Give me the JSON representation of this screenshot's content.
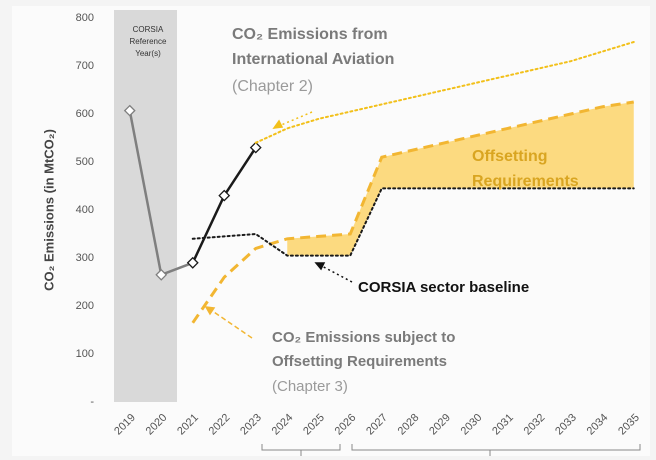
{
  "chart_data": {
    "type": "line",
    "y_label": "CO₂ Emissions (in MtCO₂)",
    "x": [
      2019,
      2020,
      2021,
      2022,
      2023,
      2024,
      2025,
      2026,
      2027,
      2028,
      2029,
      2030,
      2031,
      2032,
      2033,
      2034,
      2035
    ],
    "xlim": [
      2018.5,
      2035.5
    ],
    "xticks": [
      2019,
      2020,
      2021,
      2022,
      2023,
      2024,
      2025,
      2026,
      2027,
      2028,
      2029,
      2030,
      2031,
      2032,
      2033,
      2034,
      2035
    ],
    "ylim": [
      0,
      800
    ],
    "yticks": [
      {
        "value": 0,
        "label": "-"
      },
      100,
      200,
      300,
      400,
      500,
      600,
      700,
      800
    ],
    "shaded_range": [
      2018.5,
      2020.5
    ],
    "shaded_color": "#d9d9d9",
    "reference_label": [
      "CORSIA",
      "Reference",
      "Year(s)"
    ],
    "series": [
      {
        "color": "#7f7f7f",
        "style": "solid",
        "marker": "diamond",
        "values": [
          607,
          265,
          290,
          null,
          null,
          null,
          null,
          null,
          null,
          null,
          null,
          null,
          null,
          null,
          null,
          null,
          null
        ]
      },
      {
        "color": "#1a1a1a",
        "style": "solid",
        "marker": "diamond",
        "values": [
          null,
          null,
          290,
          430,
          530,
          null,
          null,
          null,
          null,
          null,
          null,
          null,
          null,
          null,
          null,
          null,
          null
        ]
      },
      {
        "color": "#f2c01a",
        "style": "dotted",
        "values": [
          null,
          null,
          null,
          null,
          540,
          570,
          590,
          605,
          620,
          635,
          650,
          665,
          680,
          695,
          710,
          730,
          750
        ]
      },
      {
        "color": "#f2b632",
        "style": "dashed",
        "values": [
          null,
          null,
          165,
          260,
          320,
          340,
          345,
          350,
          510,
          525,
          540,
          555,
          570,
          585,
          600,
          615,
          625
        ]
      },
      {
        "color": "#1a1a1a",
        "style": "dotted",
        "values": [
          null,
          null,
          340,
          345,
          350,
          305,
          305,
          305,
          445,
          445,
          445,
          445,
          445,
          445,
          445,
          445,
          445
        ]
      }
    ],
    "fill_color": "#fbd46a",
    "annotations": {
      "aviation": [
        "CO₂ Emissions from",
        "International Aviation",
        "(Chapter 2)"
      ],
      "offsetting": [
        "Offsetting",
        "Requirements"
      ],
      "baseline": "CORSIA sector baseline",
      "subject": [
        "CO₂ Emissions subject to",
        "Offsetting Requirements",
        "(Chapter 3)"
      ]
    }
  }
}
